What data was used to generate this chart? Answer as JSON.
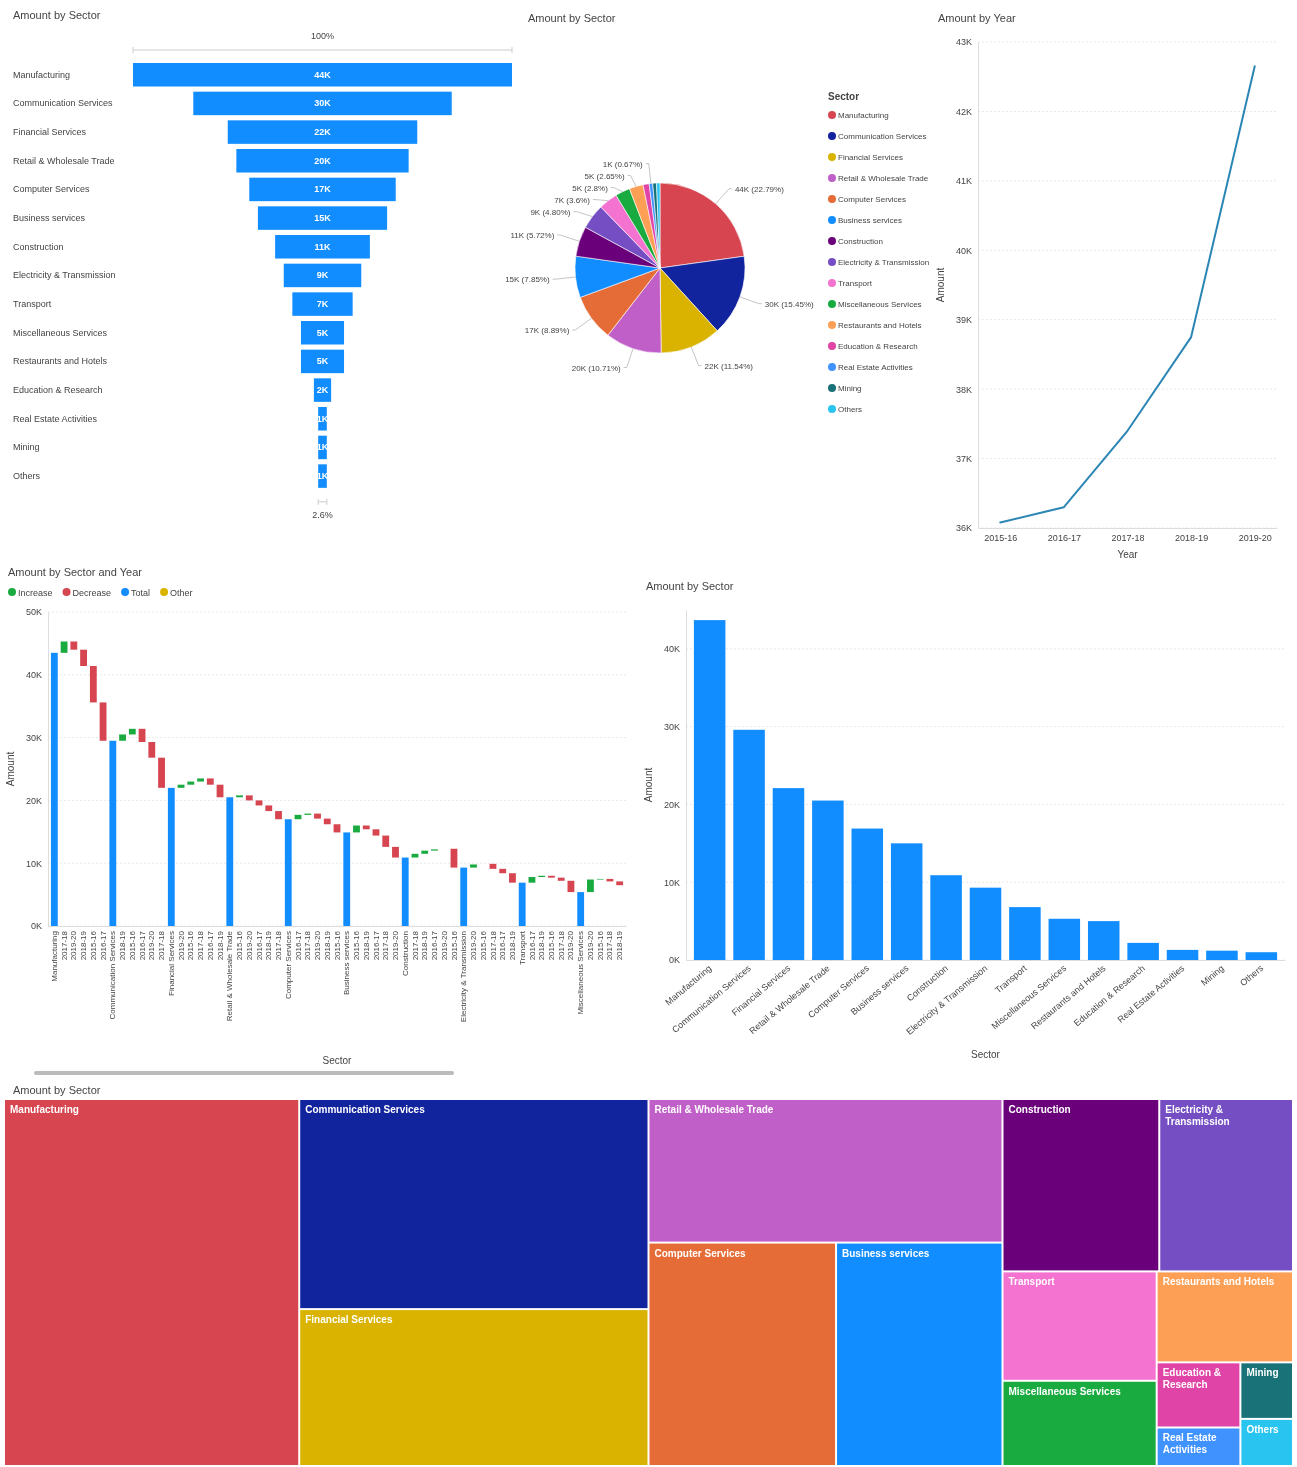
{
  "chart_data": [
    {
      "type": "other",
      "title": "Amount by Sector",
      "categories": [
        "Manufacturing",
        "Communication Services",
        "Financial Services",
        "Retail & Wholesale Trade",
        "Computer Services",
        "Business services",
        "Construction",
        "Electricity & Transmission",
        "Transport",
        "Miscellaneous Services",
        "Restaurants and Hotels",
        "Education & Research",
        "Real Estate Activities",
        "Mining",
        "Others"
      ],
      "values": [
        44000,
        30000,
        22000,
        20000,
        17000,
        15000,
        11000,
        9000,
        7000,
        5000,
        5000,
        2000,
        1000,
        1000,
        1000
      ],
      "value_labels": [
        "44K",
        "30K",
        "22K",
        "20K",
        "17K",
        "15K",
        "11K",
        "9K",
        "7K",
        "5K",
        "5K",
        "2K",
        "1K",
        "1K",
        "1K"
      ],
      "color": "#118dff",
      "annotations": [
        "100%",
        "2.6%"
      ]
    },
    {
      "type": "pie",
      "title": "Amount by Sector",
      "legend_title": "Sector",
      "legend": "right",
      "categories": [
        "Manufacturing",
        "Communication Services",
        "Financial Services",
        "Retail & Wholesale Trade",
        "Computer Services",
        "Business services",
        "Construction",
        "Electricity & Transmission",
        "Transport",
        "Miscellaneous Services",
        "Restaurants and Hotels",
        "Education & Research",
        "Real Estate Activities",
        "Mining",
        "Others"
      ],
      "values": [
        22.79,
        15.45,
        11.54,
        10.71,
        8.89,
        7.85,
        5.72,
        4.8,
        3.6,
        2.8,
        2.65,
        1.16,
        0.67,
        0.72,
        0.65
      ],
      "colors": [
        "#d64550",
        "#12239e",
        "#d9b300",
        "#c15fc8",
        "#e66c37",
        "#118dff",
        "#6b007b",
        "#744ec2",
        "#f472d0",
        "#1aab40",
        "#fd9f55",
        "#e044a7",
        "#4092ff",
        "#197278",
        "#2ac4f0"
      ],
      "value_labels": [
        "44K (22.79%)",
        "30K (15.45%)",
        "22K (11.54%)",
        "20K (10.71%)",
        "17K (8.89%)",
        "15K (7.85%)",
        "11K (5.72%)",
        "9K (4.80%)",
        "7K (3.6%)",
        "5K (2.8%)",
        "5K (2.65%)",
        null,
        "1K (0.67%)",
        null,
        null
      ]
    },
    {
      "type": "line",
      "title": "Amount by Year",
      "xlabel": "Year",
      "ylabel": "Amount",
      "categories": [
        "2015-16",
        "2016-17",
        "2017-18",
        "2018-19",
        "2019-20"
      ],
      "values": [
        36080,
        36300,
        37400,
        38750,
        42650
      ],
      "color": "#2b86b5",
      "ylim": [
        36000,
        43000
      ],
      "yticks": [
        {
          "value": 36000,
          "label": "36K"
        },
        {
          "value": 37000,
          "label": "37K"
        },
        {
          "value": 38000,
          "label": "38K"
        },
        {
          "value": 39000,
          "label": "39K"
        },
        {
          "value": 40000,
          "label": "40K"
        },
        {
          "value": 41000,
          "label": "41K"
        },
        {
          "value": 42000,
          "label": "42K"
        },
        {
          "value": 43000,
          "label": "43K"
        }
      ],
      "grid": "y"
    },
    {
      "type": "bar",
      "title": "Amount by Sector and Year",
      "xlabel": "Sector",
      "ylabel": "Amount",
      "legend": "top left",
      "categories": [
        "Manufacturing",
        "2017-18",
        "2019-20",
        "2018-19",
        "2015-16",
        "2016-17",
        "Communication Services",
        "2018-19",
        "2015-16",
        "2016-17",
        "2019-20",
        "2017-18",
        "Financial Services",
        "2019-20",
        "2015-16",
        "2017-18",
        "2016-17",
        "2018-19",
        "Retail & Wholesale Trade",
        "2015-16",
        "2019-20",
        "2016-17",
        "2018-19",
        "2017-18",
        "Computer Services",
        "2016-17",
        "2017-18",
        "2019-20",
        "2018-19",
        "2015-16",
        "Business services",
        "2015-16",
        "2018-19",
        "2016-17",
        "2017-18",
        "2019-20",
        "Construction",
        "2017-18",
        "2018-19",
        "2016-17",
        "2019-20",
        "2015-16",
        "Electricity & Transmission",
        "2019-20",
        "2015-16",
        "2017-18",
        "2016-17",
        "2018-19",
        "Transport",
        "2016-17",
        "2018-19",
        "2015-16",
        "2017-18",
        "2019-20",
        "Miscellaneous Services",
        "2019-20",
        "2015-16",
        "2017-18",
        "2018-19"
      ],
      "series": [
        {
          "name": "Increase",
          "color": "#1aab40",
          "base": [
            null,
            43500,
            null,
            null,
            null,
            null,
            null,
            29500,
            30500,
            null,
            null,
            null,
            null,
            22000,
            22500,
            23000,
            null,
            null,
            null,
            20500,
            null,
            null,
            null,
            null,
            null,
            17000,
            17700,
            null,
            null,
            null,
            null,
            14900,
            null,
            null,
            null,
            null,
            null,
            10900,
            11500,
            12000,
            null,
            null,
            null,
            9300,
            null,
            null,
            null,
            null,
            null,
            6900,
            7800,
            null,
            null,
            null,
            null,
            5400,
            7400,
            null,
            null
          ],
          "values": [
            null,
            1800,
            null,
            null,
            null,
            null,
            null,
            1000,
            900,
            null,
            null,
            null,
            null,
            500,
            500,
            500,
            null,
            null,
            null,
            300,
            null,
            null,
            null,
            null,
            null,
            700,
            200,
            null,
            null,
            null,
            null,
            1100,
            null,
            null,
            null,
            null,
            null,
            600,
            500,
            200,
            null,
            null,
            null,
            500,
            null,
            null,
            null,
            null,
            null,
            900,
            200,
            null,
            null,
            null,
            null,
            2000,
            100,
            null,
            null
          ]
        },
        {
          "name": "Decrease",
          "color": "#d64550",
          "base": [
            null,
            null,
            44000,
            41400,
            35600,
            29500,
            null,
            null,
            null,
            29300,
            26800,
            22000,
            null,
            null,
            null,
            null,
            22500,
            20500,
            null,
            null,
            20000,
            19200,
            18300,
            17000,
            null,
            null,
            null,
            17100,
            16200,
            14900,
            null,
            null,
            15400,
            14400,
            12600,
            10900,
            null,
            null,
            null,
            null,
            null,
            9300,
            null,
            null,
            null,
            9100,
            8400,
            6900,
            null,
            null,
            null,
            7700,
            7200,
            5400,
            null,
            null,
            null,
            7100,
            6500
          ],
          "values": [
            null,
            null,
            1300,
            2600,
            5800,
            6100,
            null,
            null,
            null,
            2100,
            2500,
            4800,
            null,
            null,
            null,
            null,
            1000,
            2000,
            null,
            null,
            800,
            800,
            900,
            1300,
            null,
            null,
            null,
            800,
            900,
            1300,
            null,
            null,
            600,
            1000,
            1800,
            1700,
            null,
            null,
            null,
            null,
            null,
            3000,
            null,
            null,
            null,
            800,
            700,
            1500,
            null,
            null,
            null,
            300,
            500,
            1800,
            null,
            null,
            null,
            400,
            600
          ]
        },
        {
          "name": "Total",
          "color": "#118dff",
          "values": [
            43500,
            null,
            null,
            null,
            null,
            null,
            29500,
            null,
            null,
            null,
            null,
            null,
            22000,
            null,
            null,
            null,
            null,
            null,
            20500,
            null,
            null,
            null,
            null,
            null,
            17000,
            null,
            null,
            null,
            null,
            null,
            14900,
            null,
            null,
            null,
            null,
            null,
            10900,
            null,
            null,
            null,
            null,
            null,
            9300,
            null,
            null,
            null,
            null,
            null,
            6900,
            null,
            null,
            null,
            null,
            null,
            5400,
            null,
            null,
            null,
            null
          ]
        },
        {
          "name": "Other",
          "color": "#d9b300",
          "values": [
            null,
            null,
            null,
            null,
            null,
            null,
            null,
            null,
            null,
            null,
            null,
            null,
            null,
            null,
            null,
            null,
            null,
            null,
            null,
            null,
            null,
            null,
            null,
            null,
            null,
            null,
            null,
            null,
            null,
            null,
            null,
            null,
            null,
            null,
            null,
            null,
            null,
            null,
            null,
            null,
            null,
            null,
            null,
            null,
            null,
            null,
            null,
            null,
            null,
            null,
            null,
            null,
            null,
            null,
            null,
            null,
            null,
            null,
            null
          ]
        }
      ],
      "ylim": [
        0,
        50000
      ],
      "yticks": [
        {
          "value": 0,
          "label": "0K"
        },
        {
          "value": 10000,
          "label": "10K"
        },
        {
          "value": 20000,
          "label": "20K"
        },
        {
          "value": 30000,
          "label": "30K"
        },
        {
          "value": 40000,
          "label": "40K"
        },
        {
          "value": 50000,
          "label": "50K"
        }
      ],
      "grid": "y"
    },
    {
      "type": "bar",
      "title": "Amount by Sector",
      "xlabel": "Sector",
      "ylabel": "Amount",
      "categories": [
        "Manufacturing",
        "Communication Services",
        "Financial Services",
        "Retail & Wholesale Trade",
        "Computer Services",
        "Business services",
        "Construction",
        "Electricity & Transmission",
        "Transport",
        "Miscellaneous Services",
        "Restaurants and Hotels",
        "Education & Research",
        "Real Estate Activities",
        "Mining",
        "Others"
      ],
      "values": [
        43700,
        29600,
        22100,
        20500,
        16900,
        15000,
        10900,
        9300,
        6800,
        5300,
        5000,
        2200,
        1300,
        1200,
        1000
      ],
      "color": "#118dff",
      "ylim": [
        0,
        45000
      ],
      "yticks": [
        {
          "value": 0,
          "label": "0K"
        },
        {
          "value": 10000,
          "label": "10K"
        },
        {
          "value": 20000,
          "label": "20K"
        },
        {
          "value": 30000,
          "label": "30K"
        },
        {
          "value": 40000,
          "label": "40K"
        }
      ],
      "grid": "y"
    },
    {
      "type": "other",
      "title": "Amount by Sector",
      "categories": [
        "Manufacturing",
        "Communication Services",
        "Financial Services",
        "Retail & Wholesale Trade",
        "Computer Services",
        "Business services",
        "Construction",
        "Electricity & Transmission",
        "Transport",
        "Miscellaneous Services",
        "Restaurants and Hotels",
        "Education & Research",
        "Real Estate Activities",
        "Mining",
        "Others"
      ],
      "colors": [
        "#d64550",
        "#12239e",
        "#d9b300",
        "#c15fc8",
        "#e66c37",
        "#118dff",
        "#6b007b",
        "#744ec2",
        "#f472d0",
        "#1aab40",
        "#fd9f55",
        "#e044a7",
        "#4092ff",
        "#197278",
        "#2ac4f0"
      ]
    }
  ]
}
